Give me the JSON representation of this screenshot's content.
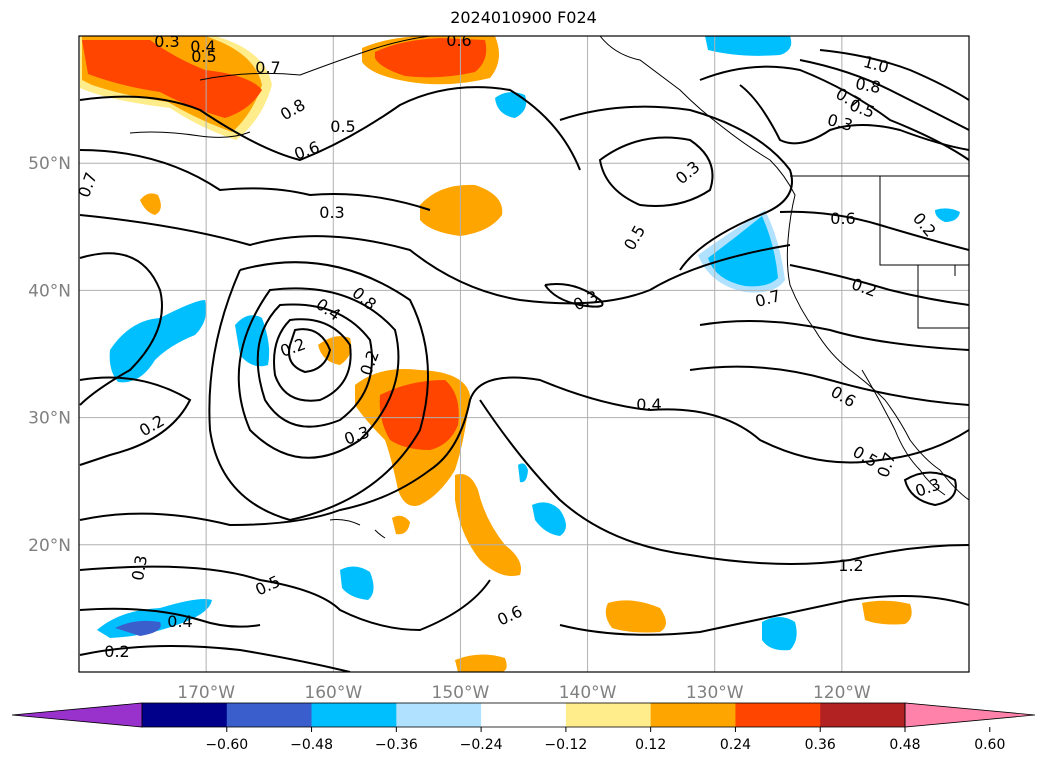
{
  "title": "2024010900 F024",
  "map": {
    "lat_labels": [
      {
        "text": "50°N",
        "lat": 50
      },
      {
        "text": "40°N",
        "lat": 40
      },
      {
        "text": "30°N",
        "lat": 30
      },
      {
        "text": "20°N",
        "lat": 20
      }
    ],
    "lon_labels": [
      {
        "text": "170°W",
        "lon": -170
      },
      {
        "text": "160°W",
        "lon": -160
      },
      {
        "text": "150°W",
        "lon": -150
      },
      {
        "text": "140°W",
        "lon": -140
      },
      {
        "text": "130°W",
        "lon": -130
      },
      {
        "text": "120°W",
        "lon": -120
      }
    ],
    "lon_range": [
      -180,
      -110
    ],
    "lat_range": [
      10,
      60
    ],
    "grid": true,
    "contour_labels": [
      "0.3",
      "0.4",
      "0.5",
      "0.7",
      "0.8",
      "0.6",
      "0.5",
      "0.6",
      "0.7",
      "0.3",
      "0.5",
      "0.3",
      "0.6",
      "0.7",
      "0.8",
      "0.4",
      "0.2",
      "0.2",
      "0.3",
      "0.2",
      "0.3",
      "0.4",
      "0.3",
      "0.5",
      "0.4",
      "0.2",
      "0.6",
      "0.6",
      "0.5",
      "0.7",
      "0.3",
      "1.2",
      "1.0",
      "0.8",
      "0.7",
      "0.5",
      "0.3",
      "0.2",
      "0.2"
    ]
  },
  "colorbar": {
    "colors": [
      "#9932cc",
      "#00008b",
      "#3a5fcd",
      "#00bfff",
      "#b0e2ff",
      "#ffffff",
      "#ffec8b",
      "#ffa500",
      "#ff4500",
      "#b22222",
      "#ff82ab"
    ],
    "tick_labels": [
      "−0.60",
      "−0.48",
      "−0.36",
      "−0.24",
      "−0.12",
      "0.12",
      "0.24",
      "0.36",
      "0.48",
      "0.60"
    ]
  }
}
